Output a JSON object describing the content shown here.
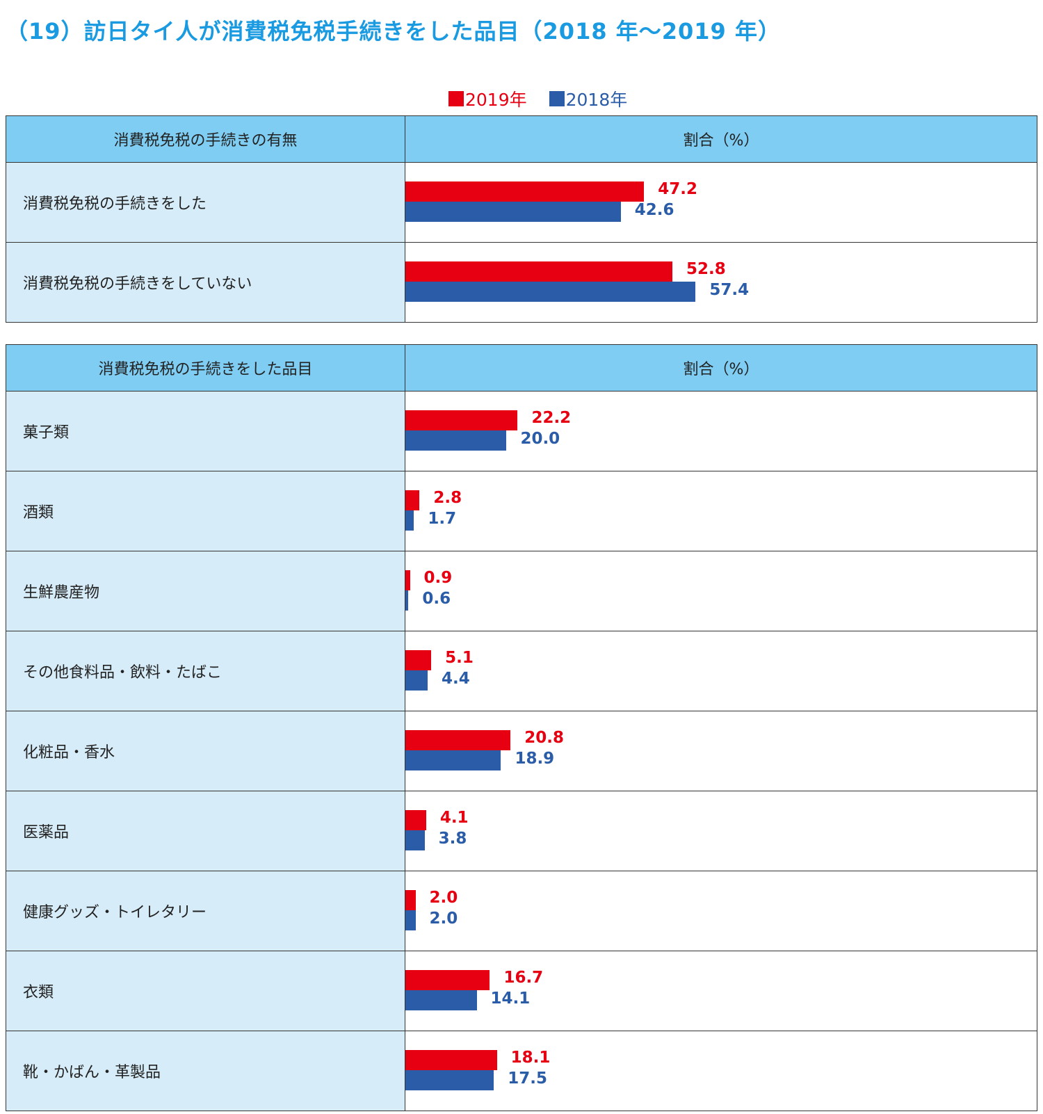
{
  "title": "（19）訪日タイ人が消費税免税手続きをした品目（2018 年～2019 年）",
  "legend": [
    {
      "label": "2019年",
      "color": "#e60012"
    },
    {
      "label": "2018年",
      "color": "#2a5ca8"
    }
  ],
  "chart_data": [
    {
      "type": "bar",
      "header_left": "消費税免税の手続きの有無",
      "header_right": "割合（%）",
      "categories": [
        "消費税免税の手続きをした",
        "消費税免税の手続きをしていない"
      ],
      "series": [
        {
          "name": "2019年",
          "values": [
            47.2,
            52.8
          ]
        },
        {
          "name": "2018年",
          "values": [
            42.6,
            57.4
          ]
        }
      ],
      "xlim": [
        0,
        125
      ]
    },
    {
      "type": "bar",
      "header_left": "消費税免税の手続きをした品目",
      "header_right": "割合（%）",
      "categories": [
        "菓子類",
        "酒類",
        "生鮮農産物",
        "その他食料品・飲料・たばこ",
        "化粧品・香水",
        "医薬品",
        "健康グッズ・トイレタリー",
        "衣類",
        "靴・かばん・革製品"
      ],
      "series": [
        {
          "name": "2019年",
          "values": [
            22.2,
            2.8,
            0.9,
            5.1,
            20.8,
            4.1,
            2.0,
            16.7,
            18.1
          ]
        },
        {
          "name": "2018年",
          "values": [
            20.0,
            1.7,
            0.6,
            4.4,
            18.9,
            3.8,
            2.0,
            14.1,
            17.5
          ]
        }
      ],
      "xlim": [
        0,
        125
      ]
    }
  ]
}
